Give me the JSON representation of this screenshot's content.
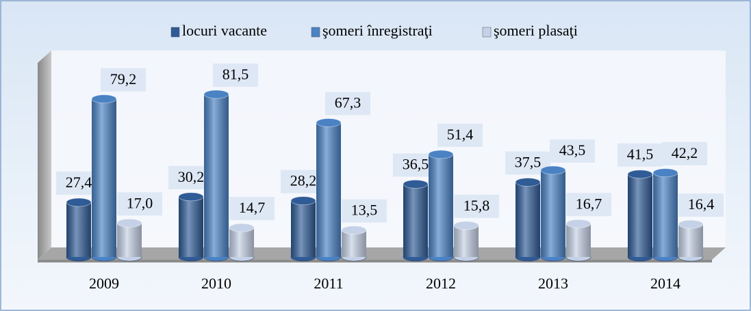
{
  "chart_data": {
    "type": "bar3d",
    "categories": [
      "2009",
      "2010",
      "2011",
      "2012",
      "2013",
      "2014"
    ],
    "series": [
      {
        "name": "locuri vacante",
        "color": "#2f5b96",
        "values": [
          27.4,
          30.2,
          28.2,
          36.5,
          37.5,
          41.5
        ],
        "value_labels": [
          "27,4",
          "30,2",
          "28,2",
          "36,5",
          "37,5",
          "41,5"
        ]
      },
      {
        "name": "şomeri înregistraţi",
        "color": "#4a82c4",
        "values": [
          79.2,
          81.5,
          67.3,
          51.4,
          43.5,
          42.2
        ],
        "value_labels": [
          "79,2",
          "81,5",
          "67,3",
          "51,4",
          "43,5",
          "42,2"
        ]
      },
      {
        "name": "şomeri plasaţi",
        "color": "#c5d1e6",
        "values": [
          17.0,
          14.7,
          13.5,
          15.8,
          16.7,
          16.4
        ],
        "value_labels": [
          "17,0",
          "14,7",
          "13,5",
          "15,8",
          "16,7",
          "16,4"
        ]
      }
    ],
    "legend": "top"
  }
}
